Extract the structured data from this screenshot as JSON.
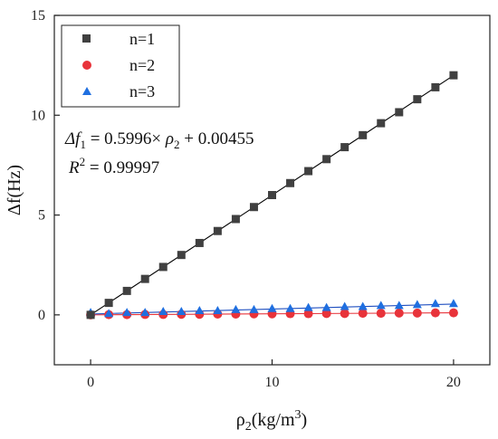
{
  "chart_data": {
    "type": "scatter",
    "x": [
      0,
      1,
      2,
      3,
      4,
      5,
      6,
      7,
      8,
      9,
      10,
      11,
      12,
      13,
      14,
      15,
      16,
      17,
      18,
      19,
      20
    ],
    "xlabel": "ρ2(kg/m3)",
    "xlabel_parts": {
      "base": "ρ",
      "sub": "2",
      "unit_open": "(kg/m",
      "sup": "3",
      "unit_close": ")"
    },
    "ylabel": "Δf(Hz)",
    "xlim": [
      -2,
      22
    ],
    "ylim": [
      -2.5,
      15
    ],
    "xticks": [
      0,
      10,
      20
    ],
    "yticks": [
      0,
      5,
      10,
      15
    ],
    "grid": false,
    "legend_position": "top-left",
    "series": [
      {
        "name": "n=1",
        "marker": "square",
        "color": "#404040",
        "line_color": "#000000",
        "values": [
          0.0,
          0.6,
          1.2,
          1.8,
          2.4,
          3.0,
          3.6,
          4.2,
          4.8,
          5.4,
          6.0,
          6.6,
          7.2,
          7.8,
          8.4,
          9.0,
          9.6,
          10.15,
          10.8,
          11.4,
          12.0
        ]
      },
      {
        "name": "n=2",
        "marker": "circle",
        "color": "#e8333a",
        "line_color": "#e8333a",
        "values": [
          0.0,
          0.01,
          0.01,
          0.02,
          0.02,
          0.03,
          0.03,
          0.04,
          0.04,
          0.05,
          0.05,
          0.06,
          0.06,
          0.07,
          0.07,
          0.08,
          0.08,
          0.09,
          0.09,
          0.1,
          0.1
        ]
      },
      {
        "name": "n=3",
        "marker": "triangle",
        "color": "#1f6fe0",
        "line_color": "#1f4fc0",
        "values": [
          0.1,
          0.05,
          0.1,
          0.1,
          0.15,
          0.15,
          0.2,
          0.2,
          0.25,
          0.25,
          0.3,
          0.3,
          0.35,
          0.35,
          0.4,
          0.4,
          0.45,
          0.45,
          0.5,
          0.55,
          0.55
        ]
      }
    ],
    "annotation": {
      "equation": "Δf1 = 0.5996× ρ2 + 0.00455",
      "equation_parts": {
        "lhs": "Δf",
        "lhs_sub": "1",
        "mid": " = 0.5996× ",
        "var": "ρ",
        "var_sub": "2",
        "tail": " + 0.00455"
      },
      "r2": "R2 = 0.99997",
      "r2_parts": {
        "base": "R",
        "sup": "2",
        "tail": " = 0.99997"
      }
    }
  }
}
